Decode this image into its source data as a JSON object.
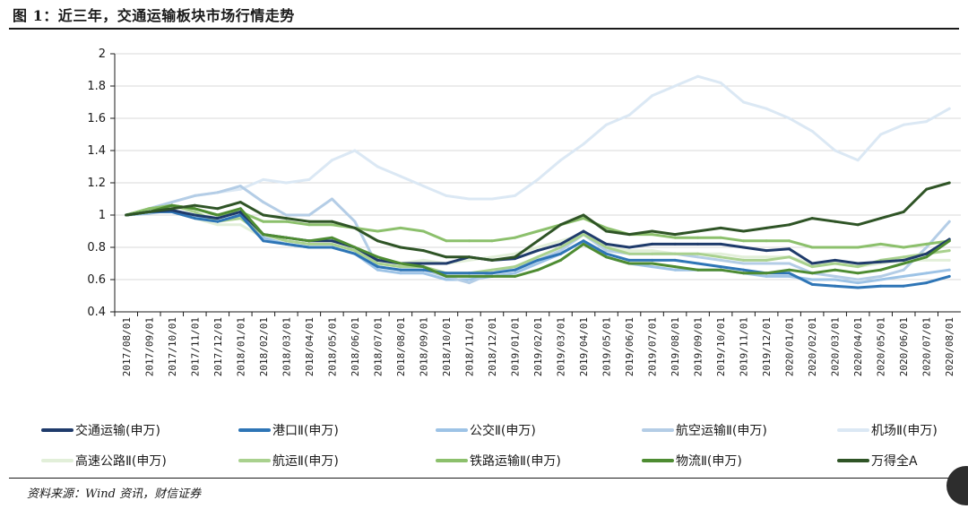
{
  "header": {
    "title": "图 1：近三年，交通运输板块市场行情走势"
  },
  "footer": {
    "source": "资料来源：Wind 资讯，财信证券"
  },
  "chart_data": {
    "type": "line",
    "title": "图 1：近三年，交通运输板块市场行情走势",
    "xlabel": "",
    "ylabel": "",
    "ylim": [
      0.4,
      2
    ],
    "yticks": [
      "2",
      "1.8",
      "1.6",
      "1.4",
      "1.2",
      "1",
      "0.8",
      "0.6",
      "0.4"
    ],
    "grid": "horizontal",
    "legend_position": "bottom",
    "x": [
      "2017/08/01",
      "2017/09/01",
      "2017/10/01",
      "2017/11/01",
      "2017/12/01",
      "2018/01/01",
      "2018/02/01",
      "2018/03/01",
      "2018/04/01",
      "2018/05/01",
      "2018/06/01",
      "2018/07/01",
      "2018/08/01",
      "2018/09/01",
      "2018/10/01",
      "2018/11/01",
      "2018/12/01",
      "2019/01/01",
      "2019/02/01",
      "2019/03/01",
      "2019/04/01",
      "2019/05/01",
      "2019/06/01",
      "2019/07/01",
      "2019/08/01",
      "2019/09/01",
      "2019/10/01",
      "2019/11/01",
      "2019/12/01",
      "2020/01/01",
      "2020/02/01",
      "2020/03/01",
      "2020/04/01",
      "2020/05/01",
      "2020/06/01",
      "2020/07/01",
      "2020/08/01"
    ],
    "series": [
      {
        "name": "交通运输(申万)",
        "color": "#1f3b6b",
        "values": [
          1.0,
          1.02,
          1.03,
          1.0,
          0.98,
          1.02,
          0.88,
          0.86,
          0.84,
          0.84,
          0.8,
          0.72,
          0.7,
          0.7,
          0.7,
          0.74,
          0.72,
          0.73,
          0.78,
          0.82,
          0.9,
          0.82,
          0.8,
          0.82,
          0.82,
          0.82,
          0.82,
          0.8,
          0.78,
          0.79,
          0.7,
          0.72,
          0.7,
          0.71,
          0.72,
          0.76,
          0.85
        ]
      },
      {
        "name": "港口Ⅱ(申万)",
        "color": "#2e75b6",
        "values": [
          1.0,
          1.02,
          1.02,
          0.98,
          0.96,
          1.0,
          0.84,
          0.82,
          0.8,
          0.8,
          0.76,
          0.68,
          0.66,
          0.66,
          0.64,
          0.64,
          0.64,
          0.66,
          0.72,
          0.76,
          0.84,
          0.76,
          0.72,
          0.72,
          0.72,
          0.7,
          0.68,
          0.66,
          0.64,
          0.64,
          0.57,
          0.56,
          0.55,
          0.56,
          0.56,
          0.58,
          0.62
        ]
      },
      {
        "name": "公交Ⅱ(申万)",
        "color": "#9dc3e6",
        "values": [
          1.0,
          1.01,
          1.03,
          1.0,
          0.96,
          1.0,
          0.86,
          0.82,
          0.8,
          0.8,
          0.76,
          0.66,
          0.64,
          0.64,
          0.6,
          0.6,
          0.62,
          0.64,
          0.7,
          0.76,
          0.84,
          0.74,
          0.7,
          0.68,
          0.66,
          0.66,
          0.66,
          0.64,
          0.62,
          0.62,
          0.6,
          0.6,
          0.58,
          0.6,
          0.62,
          0.64,
          0.66
        ]
      },
      {
        "name": "航空运输Ⅱ(申万)",
        "color": "#b4cde6",
        "values": [
          1.0,
          1.04,
          1.08,
          1.12,
          1.14,
          1.18,
          1.08,
          1.0,
          1.0,
          1.1,
          0.96,
          0.68,
          0.66,
          0.66,
          0.62,
          0.58,
          0.64,
          0.68,
          0.72,
          0.78,
          0.88,
          0.78,
          0.76,
          0.76,
          0.76,
          0.74,
          0.72,
          0.7,
          0.7,
          0.7,
          0.64,
          0.62,
          0.6,
          0.62,
          0.66,
          0.8,
          0.96
        ]
      },
      {
        "name": "机场Ⅱ(申万)",
        "color": "#dbe8f4",
        "values": [
          1.0,
          1.04,
          1.08,
          1.12,
          1.14,
          1.16,
          1.22,
          1.2,
          1.22,
          1.34,
          1.4,
          1.3,
          1.24,
          1.18,
          1.12,
          1.1,
          1.1,
          1.12,
          1.22,
          1.34,
          1.44,
          1.56,
          1.62,
          1.74,
          1.8,
          1.86,
          1.82,
          1.7,
          1.66,
          1.6,
          1.52,
          1.4,
          1.34,
          1.5,
          1.56,
          1.58,
          1.66
        ]
      },
      {
        "name": "高速公路Ⅱ(申万)",
        "color": "#e2efd9",
        "values": [
          1.0,
          1.02,
          1.02,
          0.98,
          0.94,
          0.94,
          0.86,
          0.82,
          0.8,
          0.8,
          0.76,
          0.72,
          0.7,
          0.72,
          0.7,
          0.72,
          0.74,
          0.76,
          0.8,
          0.84,
          0.88,
          0.8,
          0.78,
          0.78,
          0.76,
          0.76,
          0.76,
          0.74,
          0.74,
          0.74,
          0.7,
          0.7,
          0.68,
          0.7,
          0.72,
          0.72,
          0.72
        ]
      },
      {
        "name": "航运Ⅱ(申万)",
        "color": "#a9d18e",
        "values": [
          1.0,
          1.04,
          1.06,
          1.02,
          0.96,
          0.98,
          0.88,
          0.84,
          0.82,
          0.82,
          0.78,
          0.7,
          0.68,
          0.68,
          0.64,
          0.64,
          0.66,
          0.68,
          0.74,
          0.8,
          0.88,
          0.8,
          0.76,
          0.76,
          0.76,
          0.76,
          0.74,
          0.72,
          0.72,
          0.74,
          0.68,
          0.7,
          0.68,
          0.72,
          0.74,
          0.76,
          0.78
        ]
      },
      {
        "name": "铁路运输Ⅱ(申万)",
        "color": "#8cc06c",
        "values": [
          1.0,
          1.04,
          1.06,
          1.04,
          1.0,
          1.02,
          0.96,
          0.96,
          0.94,
          0.94,
          0.92,
          0.9,
          0.92,
          0.9,
          0.84,
          0.84,
          0.84,
          0.86,
          0.9,
          0.94,
          0.98,
          0.92,
          0.88,
          0.88,
          0.86,
          0.86,
          0.86,
          0.84,
          0.84,
          0.84,
          0.8,
          0.8,
          0.8,
          0.82,
          0.8,
          0.82,
          0.84
        ]
      },
      {
        "name": "物流Ⅱ(申万)",
        "color": "#4e8c32",
        "values": [
          1.0,
          1.02,
          1.06,
          1.04,
          1.0,
          1.04,
          0.88,
          0.86,
          0.84,
          0.86,
          0.8,
          0.74,
          0.7,
          0.68,
          0.62,
          0.62,
          0.62,
          0.62,
          0.66,
          0.72,
          0.82,
          0.74,
          0.7,
          0.7,
          0.68,
          0.66,
          0.66,
          0.64,
          0.64,
          0.66,
          0.64,
          0.66,
          0.64,
          0.66,
          0.7,
          0.74,
          0.84
        ]
      },
      {
        "name": "万得全A",
        "color": "#2f5426",
        "values": [
          1.0,
          1.02,
          1.04,
          1.06,
          1.04,
          1.08,
          1.0,
          0.98,
          0.96,
          0.96,
          0.92,
          0.84,
          0.8,
          0.78,
          0.74,
          0.74,
          0.72,
          0.74,
          0.84,
          0.94,
          1.0,
          0.9,
          0.88,
          0.9,
          0.88,
          0.9,
          0.92,
          0.9,
          0.92,
          0.94,
          0.98,
          0.96,
          0.94,
          0.98,
          1.02,
          1.16,
          1.2
        ]
      }
    ]
  }
}
